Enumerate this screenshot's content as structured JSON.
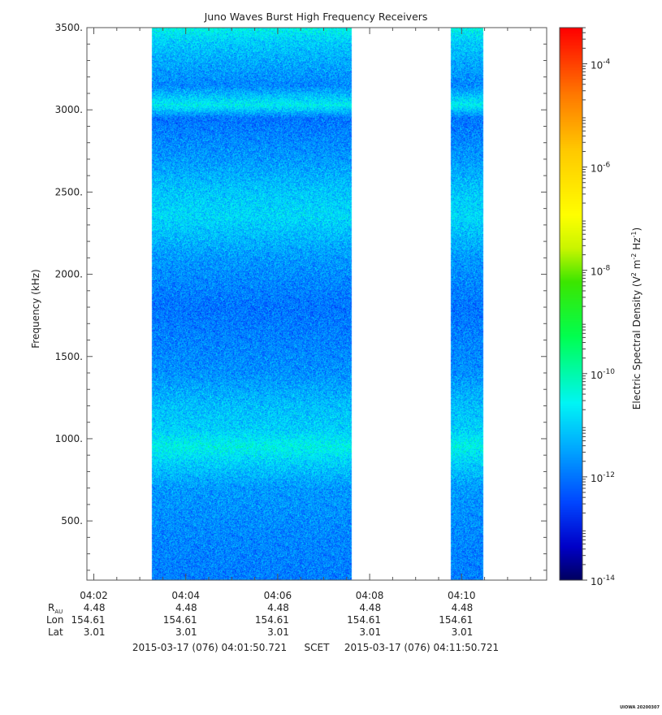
{
  "chart_data": {
    "type": "heatmap",
    "title": "Juno Waves Burst High Frequency Receivers",
    "ylabel": "Frequency (kHz)",
    "colorbar_label_base": "Electric Spectral Density (V",
    "colorbar_label_sup1": "2",
    "colorbar_label_mid": " m",
    "colorbar_label_sup2": "-2",
    "colorbar_label_mid2": " Hz",
    "colorbar_label_sup3": "-1",
    "colorbar_label_end": ")",
    "xlim_minutes": [
      1.85,
      11.85
    ],
    "ylim_khz": [
      140,
      3500
    ],
    "colorbar_log_range": [
      -14,
      -3.3
    ],
    "y_ticks": [
      {
        "value": 500,
        "label": "500."
      },
      {
        "value": 1000,
        "label": "1000."
      },
      {
        "value": 1500,
        "label": "1500."
      },
      {
        "value": 2000,
        "label": "2000."
      },
      {
        "value": 2500,
        "label": "2500."
      },
      {
        "value": 3000,
        "label": "3000."
      },
      {
        "value": 3500,
        "label": "3500."
      }
    ],
    "x_ticks": [
      {
        "value": 2,
        "label": "04:02"
      },
      {
        "value": 4,
        "label": "04:04"
      },
      {
        "value": 6,
        "label": "04:06"
      },
      {
        "value": 8,
        "label": "04:08"
      },
      {
        "value": 10,
        "label": "04:10"
      }
    ],
    "colorbar_ticks": [
      {
        "exp": -4,
        "label_base": "10",
        "label_exp": "-4"
      },
      {
        "exp": -6,
        "label_base": "10",
        "label_exp": "-6"
      },
      {
        "exp": -8,
        "label_base": "10",
        "label_exp": "-8"
      },
      {
        "exp": -10,
        "label_base": "10",
        "label_exp": "-10"
      },
      {
        "exp": -12,
        "label_base": "10",
        "label_exp": "-12"
      },
      {
        "exp": -14,
        "label_base": "10",
        "label_exp": "-14"
      }
    ],
    "data_segments": [
      {
        "start_min": 3.25,
        "end_min": 7.6
      },
      {
        "start_min": 9.75,
        "end_min": 10.47
      }
    ],
    "intensity_profile": [
      {
        "freq_khz": 150,
        "log_density": -11.9
      },
      {
        "freq_khz": 400,
        "log_density": -11.8
      },
      {
        "freq_khz": 700,
        "log_density": -11.6
      },
      {
        "freq_khz": 850,
        "log_density": -11.0
      },
      {
        "freq_khz": 950,
        "log_density": -10.5
      },
      {
        "freq_khz": 1050,
        "log_density": -11.0
      },
      {
        "freq_khz": 1200,
        "log_density": -11.2
      },
      {
        "freq_khz": 1400,
        "log_density": -11.7
      },
      {
        "freq_khz": 1800,
        "log_density": -12.0
      },
      {
        "freq_khz": 2100,
        "log_density": -11.6
      },
      {
        "freq_khz": 2350,
        "log_density": -10.9
      },
      {
        "freq_khz": 2500,
        "log_density": -11.1
      },
      {
        "freq_khz": 2700,
        "log_density": -11.6
      },
      {
        "freq_khz": 2950,
        "log_density": -12.0
      },
      {
        "freq_khz": 3030,
        "log_density": -10.6
      },
      {
        "freq_khz": 3150,
        "log_density": -11.8
      },
      {
        "freq_khz": 3300,
        "log_density": -11.4
      },
      {
        "freq_khz": 3420,
        "log_density": -11.0
      },
      {
        "freq_khz": 3500,
        "log_density": -10.5
      }
    ],
    "ephemeris": {
      "row_labels": [
        "R",
        "Lon",
        "Lat"
      ],
      "r_subscript": "AU",
      "columns": [
        {
          "at_min": 2,
          "r": "4.48",
          "lon": "154.61",
          "lat": "3.01"
        },
        {
          "at_min": 4,
          "r": "4.48",
          "lon": "154.61",
          "lat": "3.01"
        },
        {
          "at_min": 6,
          "r": "4.48",
          "lon": "154.61",
          "lat": "3.01"
        },
        {
          "at_min": 8,
          "r": "4.48",
          "lon": "154.61",
          "lat": "3.01"
        },
        {
          "at_min": 10,
          "r": "4.48",
          "lon": "154.61",
          "lat": "3.01"
        }
      ]
    },
    "time_range_start": "2015-03-17 (076) 04:01:50.721",
    "time_range_mid": "SCET",
    "time_range_end": "2015-03-17 (076) 04:11:50.721",
    "footer_mark": "UIOWA 20200307"
  }
}
